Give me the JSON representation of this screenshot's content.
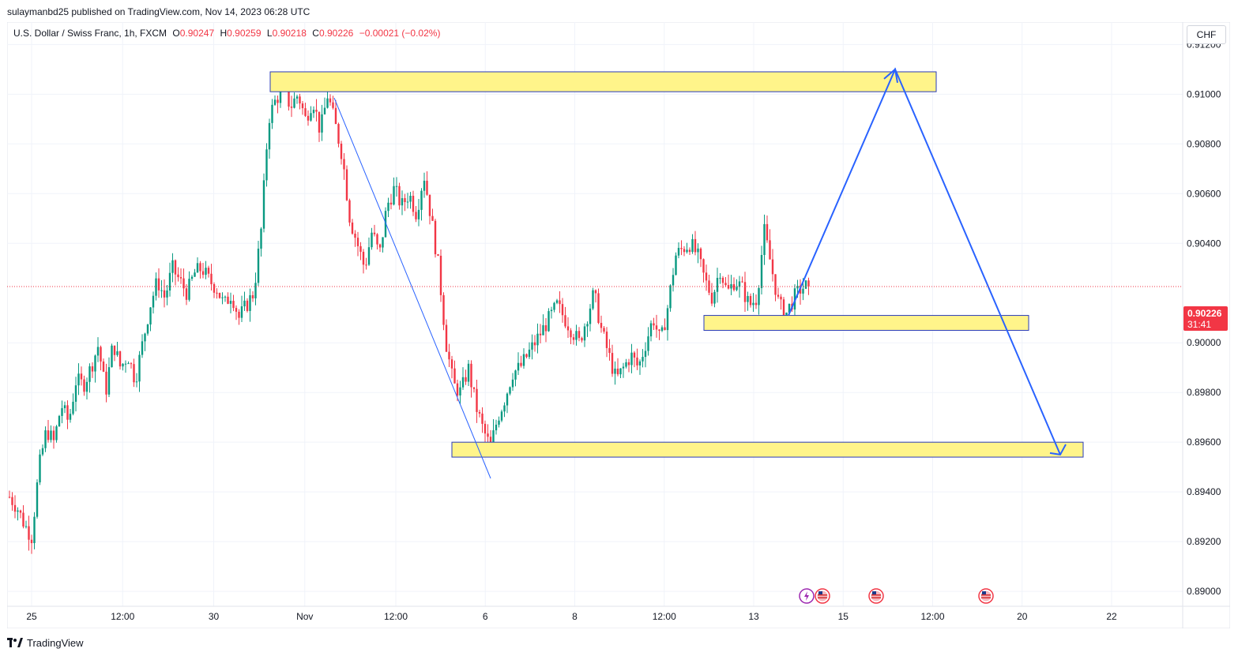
{
  "header": {
    "publisher": "sulaymanbd25 published on TradingView.com, Nov 14, 2023 06:28 UTC"
  },
  "legend": {
    "symbol": "U.S. Dollar / Swiss Franc, 1h, FXCM",
    "o_label": "O",
    "o_value": "0.90247",
    "h_label": "H",
    "h_value": "0.90259",
    "l_label": "L",
    "l_value": "0.90218",
    "c_label": "C",
    "c_value": "0.90226",
    "change": "−0.00021 (−0.02%)"
  },
  "currency_button": "CHF",
  "price_tag": {
    "price": "0.90226",
    "countdown": "31:41"
  },
  "colors": {
    "up": "#089981",
    "down": "#f23645",
    "zone_fill": "#fff48a",
    "zone_border": "#2a3bb8",
    "projection": "#2962ff"
  },
  "chart_data": {
    "type": "candlestick",
    "ylim": [
      0.8894,
      0.9129
    ],
    "yticks": [
      "0.91200",
      "0.91000",
      "0.90800",
      "0.90600",
      "0.90400",
      "0.90000",
      "0.89800",
      "0.89600",
      "0.89400",
      "0.89200",
      "0.89000"
    ],
    "xticks": [
      "25",
      "12:00",
      "30",
      "Nov",
      "12:00",
      "6",
      "8",
      "12:00",
      "13",
      "15",
      "12:00",
      "20",
      "22"
    ],
    "last_price": 0.90226,
    "path_points": [
      0.8938,
      0.8934,
      0.8927,
      0.8922,
      0.895,
      0.8965,
      0.896,
      0.8975,
      0.8968,
      0.8985,
      0.8983,
      0.899,
      0.8999,
      0.898,
      0.9,
      0.899,
      0.8995,
      0.8985,
      0.9,
      0.9015,
      0.9025,
      0.9018,
      0.903,
      0.9025,
      0.902,
      0.9028,
      0.903,
      0.9025,
      0.9022,
      0.9015,
      0.902,
      0.901,
      0.9015,
      0.902,
      0.9045,
      0.909,
      0.9098,
      0.9102,
      0.9095,
      0.91,
      0.909,
      0.9098,
      0.9085,
      0.91,
      0.9088,
      0.9075,
      0.905,
      0.904,
      0.903,
      0.9045,
      0.9035,
      0.9055,
      0.9062,
      0.9055,
      0.906,
      0.9052,
      0.9068,
      0.905,
      0.903,
      0.9,
      0.8983,
      0.898,
      0.899,
      0.8975,
      0.8965,
      0.8958,
      0.897,
      0.8978,
      0.8988,
      0.899,
      0.8995,
      0.9,
      0.9005,
      0.901,
      0.9015,
      0.901,
      0.9005,
      0.9,
      0.901,
      0.902,
      0.9005,
      0.8995,
      0.8985,
      0.899,
      0.8995,
      0.899,
      0.9,
      0.901,
      0.9,
      0.9015,
      0.9035,
      0.9038,
      0.904,
      0.9035,
      0.9025,
      0.9018,
      0.903,
      0.902,
      0.9025,
      0.9022,
      0.9015,
      0.9018,
      0.9045,
      0.903,
      0.9015,
      0.9012,
      0.9018,
      0.9022,
      0.9023
    ],
    "zones": [
      {
        "from": 0.9101,
        "to": 0.9109
      },
      {
        "from": 0.9005,
        "to": 0.9011
      },
      {
        "from": 0.8954,
        "to": 0.896
      }
    ],
    "projection_path": [
      0.9011,
      0.911,
      0.8955
    ]
  },
  "event_markers": [
    {
      "icon": "lightning-icon"
    },
    {
      "icon": "us-flag-icon"
    },
    {
      "icon": "us-flag-icon"
    },
    {
      "icon": "us-flag-icon"
    }
  ],
  "footer": {
    "brand": "TradingView"
  }
}
